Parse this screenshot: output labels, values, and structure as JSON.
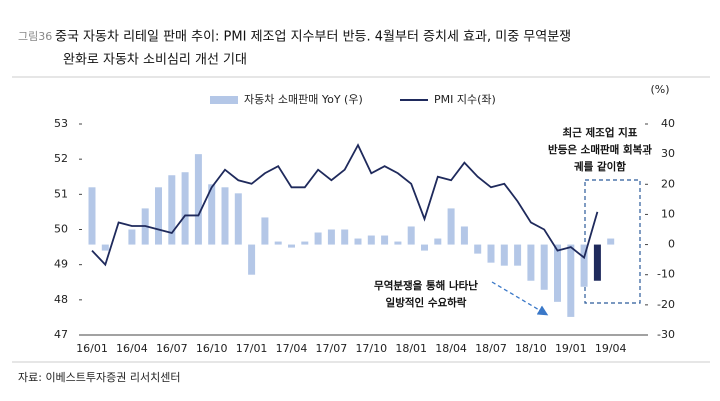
{
  "chart_data": {
    "type": "bar_line",
    "figure_label": "그림36",
    "title": [
      "중국 자동차 리테일 판매 추이: PMI 제조업 지수부터 반등. 4월부터 증치세 효과, 미중   무역분쟁",
      "완화로 자동차 소비심리 개선 기대"
    ],
    "y2_unit": "(%)",
    "categories": [
      "16/01",
      null,
      null,
      "16/04",
      null,
      null,
      "16/07",
      null,
      null,
      "16/10",
      null,
      null,
      "17/01",
      null,
      null,
      "17/04",
      null,
      null,
      "17/07",
      null,
      null,
      "17/10",
      null,
      null,
      "18/01",
      null,
      null,
      "18/04",
      null,
      null,
      "18/07",
      null,
      null,
      "18/10",
      null,
      null,
      "19/01",
      null,
      null,
      "19/04"
    ],
    "series": [
      {
        "name": "자동차 소매판매 YoY (우)",
        "type": "bar",
        "axis": "y2",
        "color": "#b4c7e7",
        "colors": [
          "#b4c7e7",
          "#b4c7e7",
          "#b4c7e7",
          "#b4c7e7",
          "#b4c7e7",
          "#b4c7e7",
          "#b4c7e7",
          "#b4c7e7",
          "#b4c7e7",
          "#b4c7e7",
          "#b4c7e7",
          "#b4c7e7",
          "#b4c7e7",
          "#b4c7e7",
          "#b4c7e7",
          "#b4c7e7",
          "#b4c7e7",
          "#b4c7e7",
          "#b4c7e7",
          "#b4c7e7",
          "#b4c7e7",
          "#b4c7e7",
          "#b4c7e7",
          "#b4c7e7",
          "#b4c7e7",
          "#b4c7e7",
          "#b4c7e7",
          "#b4c7e7",
          "#b4c7e7",
          "#b4c7e7",
          "#b4c7e7",
          "#b4c7e7",
          "#b4c7e7",
          "#b4c7e7",
          "#b4c7e7",
          "#b4c7e7",
          "#b4c7e7",
          "#b4c7e7",
          "#1f2a5c",
          "#b4c7e7"
        ],
        "values": [
          19,
          -2,
          0,
          5,
          12,
          19,
          23,
          24,
          30,
          20,
          19,
          17,
          -10,
          9,
          1,
          -1,
          1,
          4,
          5,
          5,
          2,
          3,
          3,
          1,
          6,
          -2,
          2,
          12,
          6,
          -3,
          -6,
          -7,
          -7,
          -12,
          -15,
          -19,
          -24,
          -14,
          -12,
          2
        ]
      },
      {
        "name": "PMI 지수(좌)",
        "type": "line",
        "axis": "y",
        "color": "#1f2a5c",
        "values": [
          49.4,
          49.0,
          50.2,
          50.1,
          50.1,
          50.0,
          49.9,
          50.4,
          50.4,
          51.2,
          51.7,
          51.4,
          51.3,
          51.6,
          51.8,
          51.2,
          51.2,
          51.7,
          51.4,
          51.7,
          52.4,
          51.6,
          51.8,
          51.6,
          51.3,
          50.3,
          51.5,
          51.4,
          51.9,
          51.5,
          51.2,
          51.3,
          50.8,
          50.2,
          50.0,
          49.4,
          49.5,
          49.2,
          50.5,
          null
        ]
      }
    ],
    "ylim": [
      47,
      53
    ],
    "yticks": [
      47,
      48,
      49,
      50,
      51,
      52,
      53
    ],
    "y2lim": [
      -30,
      40
    ],
    "y2ticks": [
      -30,
      -20,
      -10,
      0,
      10,
      20,
      30,
      40
    ],
    "annotations": [
      {
        "lines": [
          "최근 제조업 지표",
          "반등은 소매판매 회복과",
          "궤를 같이함"
        ]
      },
      {
        "lines": [
          "무역분쟁을 통해 나타난",
          "일방적인 수요하락"
        ]
      }
    ],
    "source": "자료: 이베스트투자증권 리서치센터"
  }
}
